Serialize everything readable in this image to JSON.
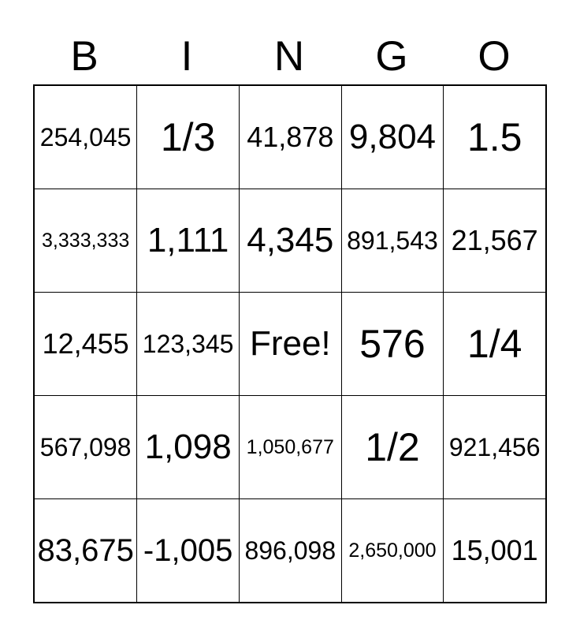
{
  "header": {
    "letters": [
      "B",
      "I",
      "N",
      "G",
      "O"
    ]
  },
  "card": {
    "rows": [
      [
        "254,045",
        "1/3",
        "41,878",
        "9,804",
        "1.5"
      ],
      [
        "3,333,333",
        "1,111",
        "4,345",
        "891,543",
        "21,567"
      ],
      [
        "12,455",
        "123,345",
        "Free!",
        "576",
        "1/4"
      ],
      [
        "567,098",
        "1,098",
        "1,050,677",
        "1/2",
        "921,456"
      ],
      [
        "83,675",
        "-1,005",
        "896,098",
        "2,650,000",
        "15,001"
      ]
    ],
    "free_cell_text": "Free!"
  },
  "colors": {
    "text": "#000000",
    "grid_border": "#000000",
    "background": "#ffffff"
  }
}
